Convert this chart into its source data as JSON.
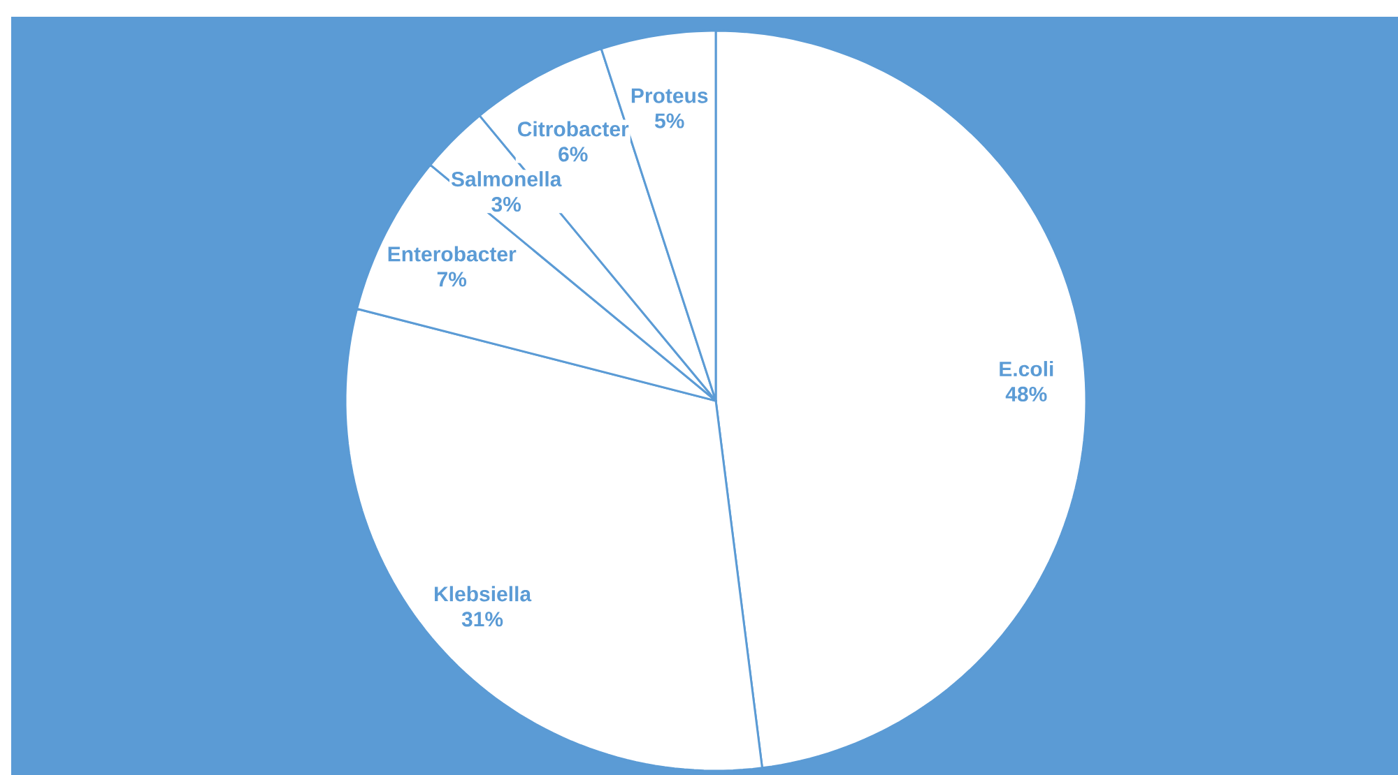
{
  "chart_data": {
    "type": "pie",
    "categories": [
      "E.coli",
      "Klebsiella",
      "Enterobacter",
      "Salmonella",
      "Citrobacter",
      "Proteus"
    ],
    "values": [
      48,
      31,
      7,
      3,
      6,
      5
    ],
    "value_labels": [
      "48%",
      "31%",
      "7%",
      "3%",
      "6%",
      "5%"
    ],
    "colors": [
      "#ffffff",
      "#ffffff",
      "#ffffff",
      "#ffffff",
      "#ffffff",
      "#ffffff"
    ]
  }
}
